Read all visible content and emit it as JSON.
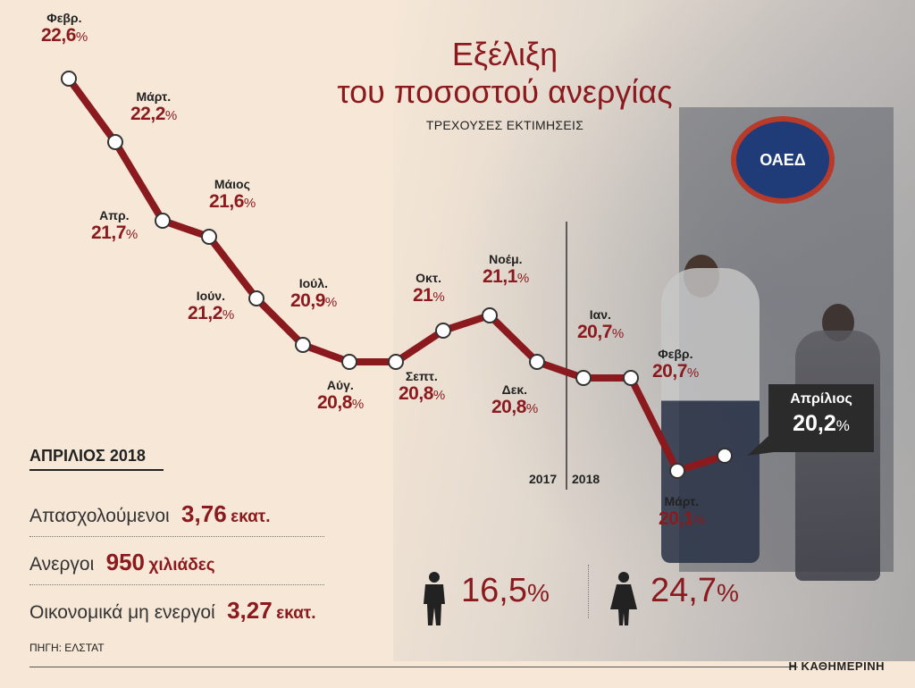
{
  "title_line1": "Εξέλιξη",
  "title_line2": "του ποσοστού ανεργίας",
  "subtitle": "ΤΡΕΧΟΥΣΕΣ ΕΚΤΙΜΗΣΕΙΣ",
  "photo_sign": "ΟΑΕΔ",
  "year_2017": "2017",
  "year_2018": "2018",
  "callout": {
    "month": "Απρίλιος",
    "value": "20,2",
    "pct": "%"
  },
  "points": [
    {
      "month": "Φεβρ.",
      "value": "22,6",
      "pct": "%"
    },
    {
      "month": "Μάρτ.",
      "value": "22,2",
      "pct": "%"
    },
    {
      "month": "Απρ.",
      "value": "21,7",
      "pct": "%"
    },
    {
      "month": "Μάιος",
      "value": "21,6",
      "pct": "%"
    },
    {
      "month": "Ιούν.",
      "value": "21,2",
      "pct": "%"
    },
    {
      "month": "Ιούλ.",
      "value": "20,9",
      "pct": "%"
    },
    {
      "month": "Αύγ.",
      "value": "20,8",
      "pct": "%"
    },
    {
      "month": "Σεπτ.",
      "value": "20,8",
      "pct": "%"
    },
    {
      "month": "Οκτ.",
      "value": "21",
      "pct": "%"
    },
    {
      "month": "Νοέμ.",
      "value": "21,1",
      "pct": "%"
    },
    {
      "month": "Δεκ.",
      "value": "20,8",
      "pct": "%"
    },
    {
      "month": "Ιαν.",
      "value": "20,7",
      "pct": "%"
    },
    {
      "month": "Φεβρ.",
      "value": "20,7",
      "pct": "%"
    },
    {
      "month": "Μάρτ.",
      "value": "20,1",
      "pct": "%"
    }
  ],
  "stats": {
    "title": "ΑΠΡΙΛΙΟΣ 2018",
    "employed": {
      "label": "Απασχολούμενοι",
      "value": "3,76",
      "unit": "εκατ."
    },
    "unemployed": {
      "label": "Ανεργοι",
      "value": "950",
      "unit": "χιλιάδες"
    },
    "inactive": {
      "label": "Οικονομικά μη ενεργοί",
      "value": "3,27",
      "unit": "εκατ."
    },
    "men_rate": "16,5",
    "women_rate": "24,7",
    "pct": "%"
  },
  "source": "ΠΗΓΗ: ΕΛΣΤΑΤ",
  "brand": "Η ΚΑΘΗΜΕΡΙΝΗ",
  "colors": {
    "line": "#8b1a1f",
    "value_text": "#8b1a1f",
    "callout_bg": "#2b2b2b",
    "background": "#f6e7d6"
  },
  "chart_data": {
    "type": "line",
    "title": "Εξέλιξη του ποσοστού ανεργίας",
    "subtitle": "ΤΡΕΧΟΥΣΕΣ ΕΚΤΙΜΗΣΕΙΣ",
    "categories": [
      "Φεβρ.",
      "Μάρτ.",
      "Απρ.",
      "Μάιος",
      "Ιούν.",
      "Ιούλ.",
      "Αύγ.",
      "Σεπτ.",
      "Οκτ.",
      "Νοέμ.",
      "Δεκ.",
      "Ιαν.",
      "Φεβρ.",
      "Μάρτ.",
      "Απρίλιος"
    ],
    "values": [
      22.6,
      22.2,
      21.7,
      21.6,
      21.2,
      20.9,
      20.8,
      20.8,
      21.0,
      21.1,
      20.8,
      20.7,
      20.7,
      20.1,
      20.2
    ],
    "unit": "%",
    "year_divider": [
      "2017",
      "2018"
    ],
    "ylim": [
      20.1,
      22.6
    ],
    "grid": false
  }
}
